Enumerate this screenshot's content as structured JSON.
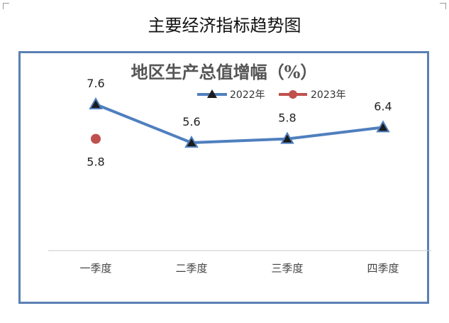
{
  "page_title": "主要经济指标趋势图",
  "colors": {
    "frame": "#5a80b3",
    "series_2022": "#4f7fbf",
    "series_2023": "#c0504d",
    "marker_2022": "#1c1c1c",
    "axis": "#c8c8c8"
  },
  "chart_data": {
    "type": "line",
    "title": "地区生产总值增幅（%）",
    "categories": [
      "一季度",
      "二季度",
      "三季度",
      "四季度"
    ],
    "series": [
      {
        "name": "2022年",
        "values": [
          7.6,
          5.6,
          5.8,
          6.4
        ],
        "marker": "triangle"
      },
      {
        "name": "2023年",
        "values": [
          5.8,
          null,
          null,
          null
        ],
        "marker": "circle"
      }
    ],
    "data_labels": true,
    "legend_position": "top",
    "grid": false
  }
}
